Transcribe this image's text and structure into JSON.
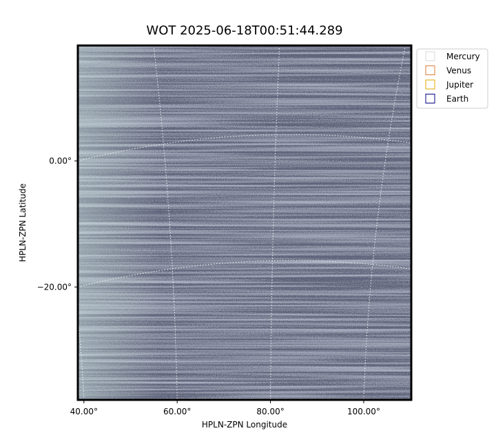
{
  "chart_data": {
    "type": "image",
    "title": "WOT 2025-06-18T00:51:44.289",
    "xlabel": "HPLN-ZPN Longitude",
    "ylabel": "HPLN-ZPN Latitude",
    "xlim": [
      38.7,
      110.2
    ],
    "ylim": [
      -37.9,
      18.3
    ],
    "xticks": [
      {
        "value": 40,
        "label": "40.00°"
      },
      {
        "value": 60,
        "label": "60.00°"
      },
      {
        "value": 80,
        "label": "80.00°"
      },
      {
        "value": 100,
        "label": "100.00°"
      }
    ],
    "yticks": [
      {
        "value": 0,
        "label": "0.00°"
      },
      {
        "value": -20,
        "label": "−20.00°"
      }
    ],
    "grid": true,
    "legend_position": "upper right",
    "legend": [
      {
        "name": "Mercury",
        "color": "#d9d9d9"
      },
      {
        "name": "Venus",
        "color": "#e07b39"
      },
      {
        "name": "Jupiter",
        "color": "#e0a800"
      },
      {
        "name": "Earth",
        "color": "#000080"
      }
    ]
  }
}
